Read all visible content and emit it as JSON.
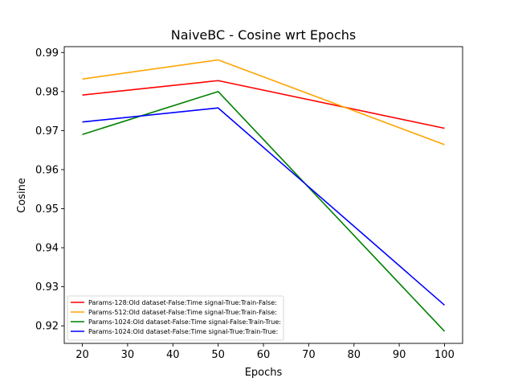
{
  "chart_data": {
    "type": "line",
    "title": "NaiveBC - Cosine wrt Epochs",
    "xlabel": "Epochs",
    "ylabel": "Cosine",
    "x": [
      20,
      50,
      100
    ],
    "xlim": [
      16,
      104
    ],
    "ylim": [
      0.9155,
      0.9915
    ],
    "xticks": [
      20,
      30,
      40,
      50,
      60,
      70,
      80,
      90,
      100
    ],
    "xtick_labels": [
      "20",
      "30",
      "40",
      "50",
      "60",
      "70",
      "80",
      "90",
      "100"
    ],
    "yticks": [
      0.92,
      0.93,
      0.94,
      0.95,
      0.96,
      0.97,
      0.98,
      0.99
    ],
    "ytick_labels": [
      "0.92",
      "0.93",
      "0.94",
      "0.95",
      "0.96",
      "0.97",
      "0.98",
      "0.99"
    ],
    "grid": false,
    "legend_position": "lower-left",
    "series": [
      {
        "name": "Params-128:Old dataset-False:Time signal-True:Train-False:",
        "color": "#ff0000",
        "values": [
          0.9791,
          0.9828,
          0.9706
        ]
      },
      {
        "name": "Params-512:Old dataset-False:Time signal-True:Train-False:",
        "color": "#ffa500",
        "values": [
          0.9832,
          0.9881,
          0.9664
        ]
      },
      {
        "name": "Params-1024:Old dataset-False:Time signal-False:Train-True:",
        "color": "#008000",
        "values": [
          0.969,
          0.98,
          0.9186
        ]
      },
      {
        "name": "Params-1024:Old dataset-False:Time signal-True:Train-True:",
        "color": "#0000ff",
        "values": [
          0.9722,
          0.9758,
          0.9253
        ]
      }
    ]
  }
}
